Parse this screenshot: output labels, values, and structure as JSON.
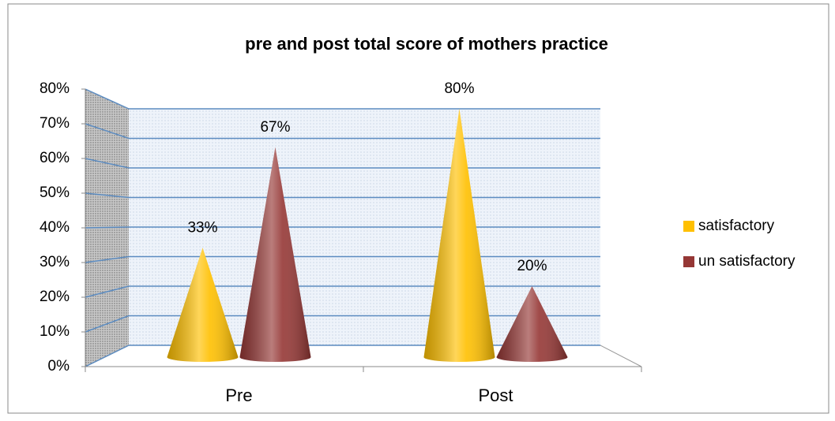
{
  "chart_data": {
    "type": "cone",
    "title": "pre and post total score of mothers practice",
    "categories": [
      "Pre",
      "Post"
    ],
    "series": [
      {
        "name": "satisfactory",
        "color": "#ffc000",
        "values": [
          33,
          80
        ],
        "value_labels": [
          "33%",
          "80%"
        ]
      },
      {
        "name": "un satisfactory",
        "color": "#953735",
        "values": [
          67,
          20
        ],
        "value_labels": [
          "67%",
          "20%"
        ]
      }
    ],
    "ylim": [
      0,
      80
    ],
    "yticks": [
      {
        "value": 0,
        "label": "0%"
      },
      {
        "value": 10,
        "label": "10%"
      },
      {
        "value": 20,
        "label": "20%"
      },
      {
        "value": 30,
        "label": "30%"
      },
      {
        "value": 40,
        "label": "40%"
      },
      {
        "value": 50,
        "label": "50%"
      },
      {
        "value": 60,
        "label": "60%"
      },
      {
        "value": 70,
        "label": "70%"
      },
      {
        "value": 80,
        "label": "80%"
      }
    ],
    "grid": true,
    "legend": "right"
  }
}
